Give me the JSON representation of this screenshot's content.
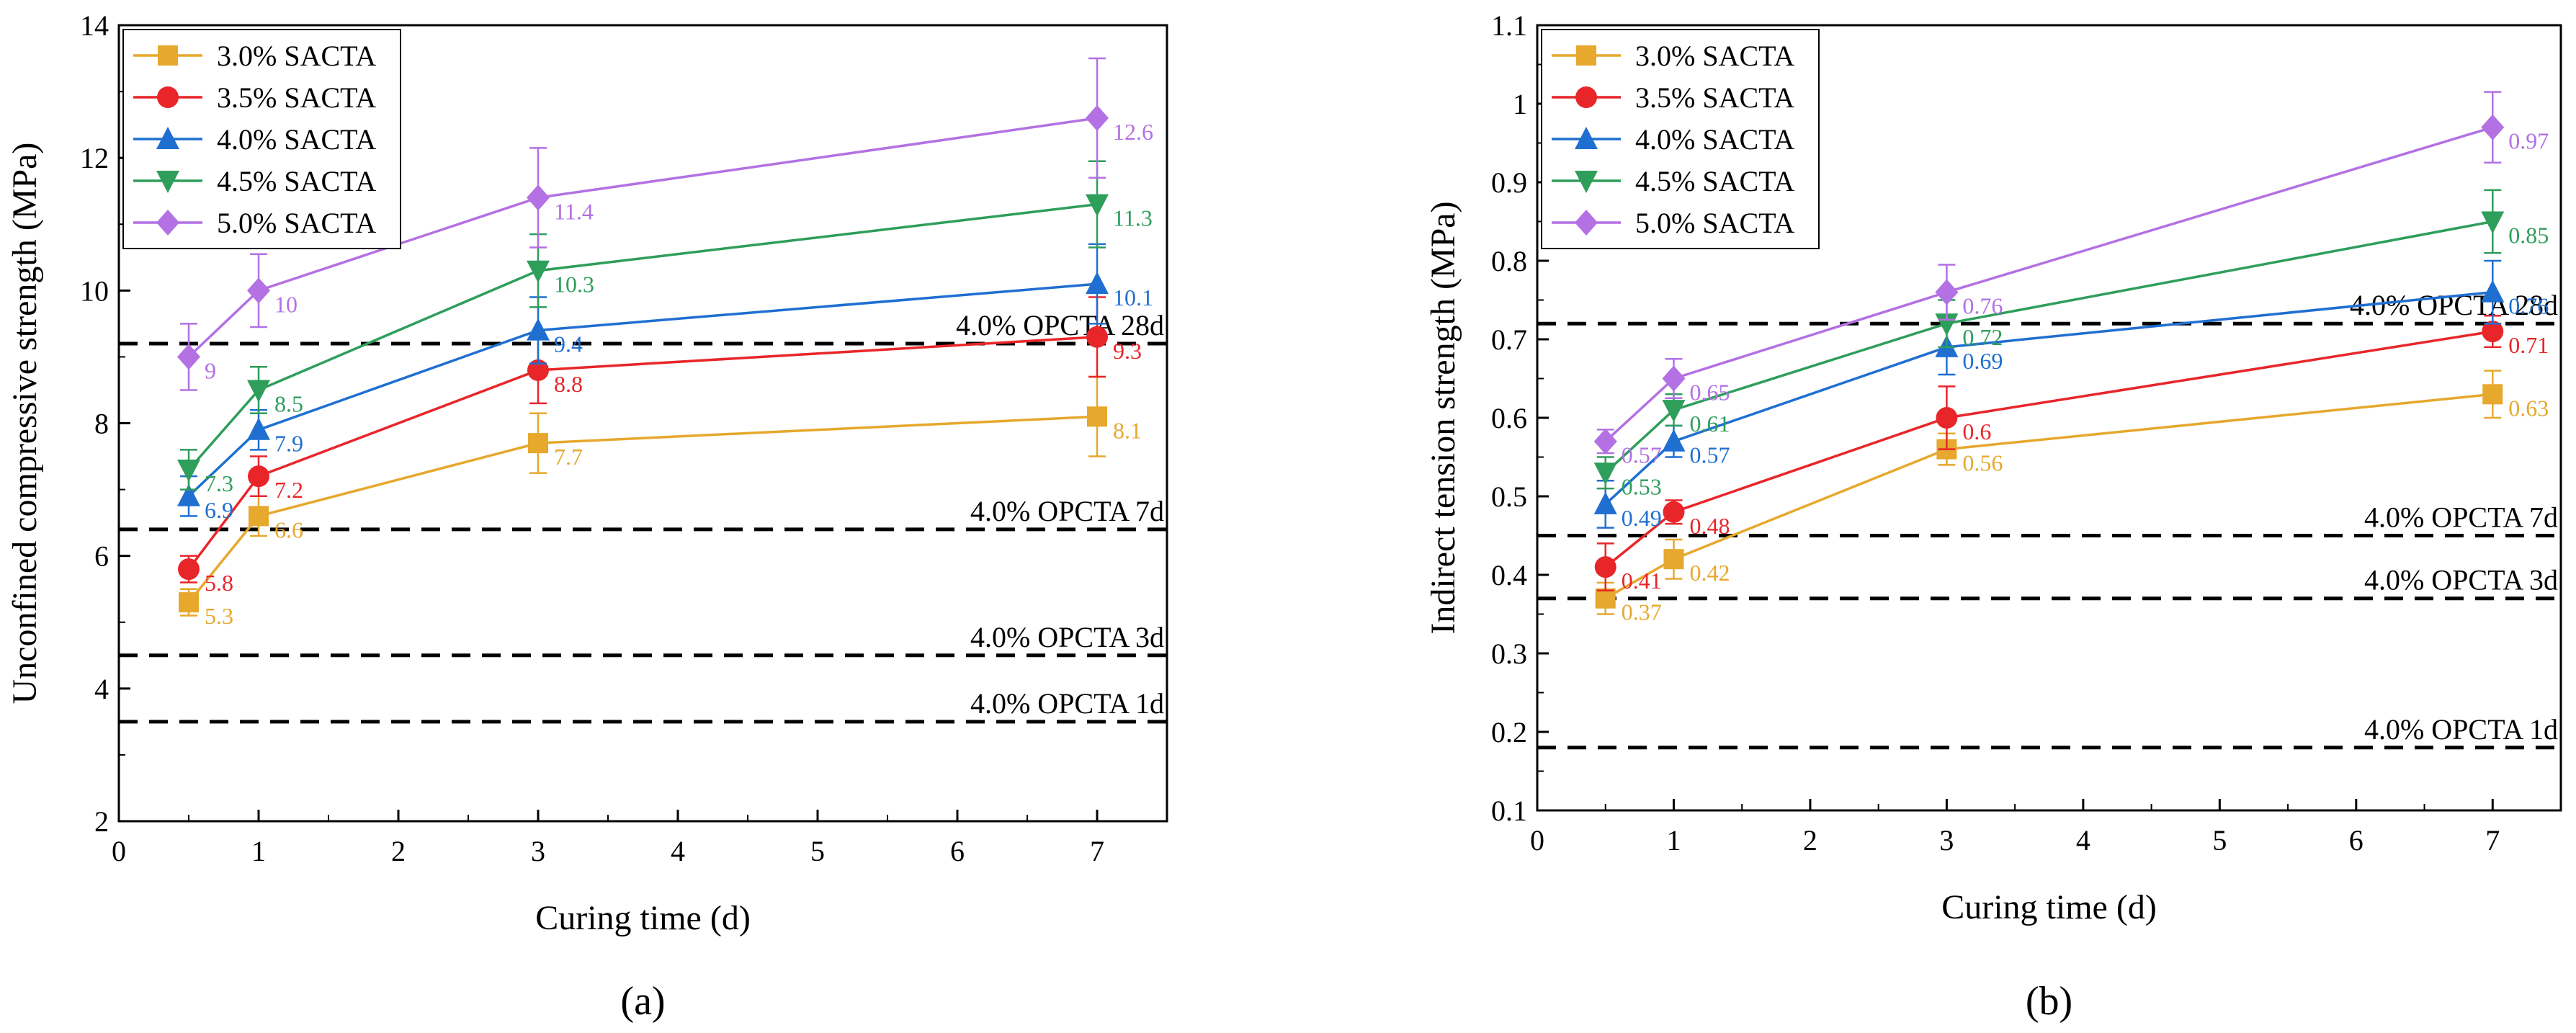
{
  "chart_data": [
    {
      "type": "line",
      "panel_label": "(a)",
      "xlabel": "Curing time (d)",
      "ylabel": "Unconfined compressive strength (MPa)",
      "xlim": [
        0,
        7.5
      ],
      "ylim": [
        2,
        14
      ],
      "x_ticks": [
        0,
        1,
        2,
        3,
        4,
        5,
        6,
        7
      ],
      "y_ticks": [
        2,
        4,
        6,
        8,
        10,
        12,
        14
      ],
      "x": [
        0.5,
        1,
        3,
        7
      ],
      "legend_placement": "top-left",
      "grid": false,
      "series": [
        {
          "name": "3.0% SACTA",
          "color": "#E6A82D",
          "marker": "square",
          "values": [
            5.3,
            6.6,
            7.7,
            8.1
          ],
          "errors": [
            0.2,
            0.3,
            0.45,
            0.6
          ],
          "labels": [
            "5.3",
            "6.6",
            "7.7",
            "8.1"
          ]
        },
        {
          "name": "3.5% SACTA",
          "color": "#E8262A",
          "marker": "circle",
          "values": [
            5.8,
            7.2,
            8.8,
            9.3
          ],
          "errors": [
            0.2,
            0.3,
            0.5,
            0.6
          ],
          "labels": [
            "5.8",
            "7.2",
            "8.8",
            "9.3"
          ]
        },
        {
          "name": "4.0% SACTA",
          "color": "#1F6FD1",
          "marker": "triangle-up",
          "values": [
            6.9,
            7.9,
            9.4,
            10.1
          ],
          "errors": [
            0.3,
            0.3,
            0.5,
            0.6
          ],
          "labels": [
            "6.9",
            "7.9",
            "9.4",
            "10.1"
          ]
        },
        {
          "name": "4.5% SACTA",
          "color": "#2E9E5B",
          "marker": "triangle-down",
          "values": [
            7.3,
            8.5,
            10.3,
            11.3
          ],
          "errors": [
            0.3,
            0.35,
            0.55,
            0.65
          ],
          "labels": [
            "7.3",
            "8.5",
            "10.3",
            "11.3"
          ]
        },
        {
          "name": "5.0% SACTA",
          "color": "#B371E3",
          "marker": "diamond",
          "values": [
            9.0,
            10.0,
            11.4,
            12.6
          ],
          "errors": [
            0.5,
            0.55,
            0.75,
            0.9
          ],
          "labels": [
            "9",
            "10",
            "11.4",
            "12.6"
          ]
        }
      ],
      "reference_lines": [
        {
          "label": "4.0% OPCTA 28d",
          "y": 9.2
        },
        {
          "label": "4.0% OPCTA 7d",
          "y": 6.4
        },
        {
          "label": "4.0% OPCTA 3d",
          "y": 4.5
        },
        {
          "label": "4.0% OPCTA 1d",
          "y": 3.5
        }
      ]
    },
    {
      "type": "line",
      "panel_label": "(b)",
      "xlabel": "Curing time (d)",
      "ylabel": "Indirect tension strength (MPa)",
      "xlim": [
        0,
        7.5
      ],
      "ylim": [
        0.1,
        1.1
      ],
      "x_ticks": [
        0,
        1,
        2,
        3,
        4,
        5,
        6,
        7
      ],
      "y_ticks": [
        0.1,
        0.2,
        0.3,
        0.4,
        0.5,
        0.6,
        0.7,
        0.8,
        0.9,
        1.0,
        1.1
      ],
      "x": [
        0.5,
        1,
        3,
        7
      ],
      "legend_placement": "top-left",
      "grid": false,
      "series": [
        {
          "name": "3.0% SACTA",
          "color": "#E6A82D",
          "marker": "square",
          "values": [
            0.37,
            0.42,
            0.56,
            0.63
          ],
          "errors": [
            0.02,
            0.025,
            0.02,
            0.03
          ],
          "labels": [
            "0.37",
            "0.42",
            "0.56",
            "0.63"
          ]
        },
        {
          "name": "3.5% SACTA",
          "color": "#E8262A",
          "marker": "circle",
          "values": [
            0.41,
            0.48,
            0.6,
            0.71
          ],
          "errors": [
            0.03,
            0.015,
            0.04,
            0.02
          ],
          "labels": [
            "0.41",
            "0.48",
            "0.6",
            "0.71"
          ]
        },
        {
          "name": "4.0% SACTA",
          "color": "#1F6FD1",
          "marker": "triangle-up",
          "values": [
            0.49,
            0.57,
            0.69,
            0.76
          ],
          "errors": [
            0.03,
            0.02,
            0.035,
            0.04
          ],
          "labels": [
            "0.49",
            "0.57",
            "0.69",
            "0.76"
          ]
        },
        {
          "name": "4.5% SACTA",
          "color": "#2E9E5B",
          "marker": "triangle-down",
          "values": [
            0.53,
            0.61,
            0.72,
            0.85
          ],
          "errors": [
            0.02,
            0.02,
            0.03,
            0.04
          ],
          "labels": [
            "0.53",
            "0.61",
            "0.72",
            "0.85"
          ]
        },
        {
          "name": "5.0% SACTA",
          "color": "#B371E3",
          "marker": "diamond",
          "values": [
            0.57,
            0.65,
            0.76,
            0.97
          ],
          "errors": [
            0.015,
            0.025,
            0.035,
            0.045
          ],
          "labels": [
            "0.57",
            "0.65",
            "0.76",
            "0.97"
          ]
        }
      ],
      "reference_lines": [
        {
          "label": "4.0% OPCTA 28d",
          "y": 0.72
        },
        {
          "label": "4.0% OPCTA 7d",
          "y": 0.45
        },
        {
          "label": "4.0% OPCTA 3d",
          "y": 0.37
        },
        {
          "label": "4.0% OPCTA 1d",
          "y": 0.18
        }
      ]
    }
  ]
}
